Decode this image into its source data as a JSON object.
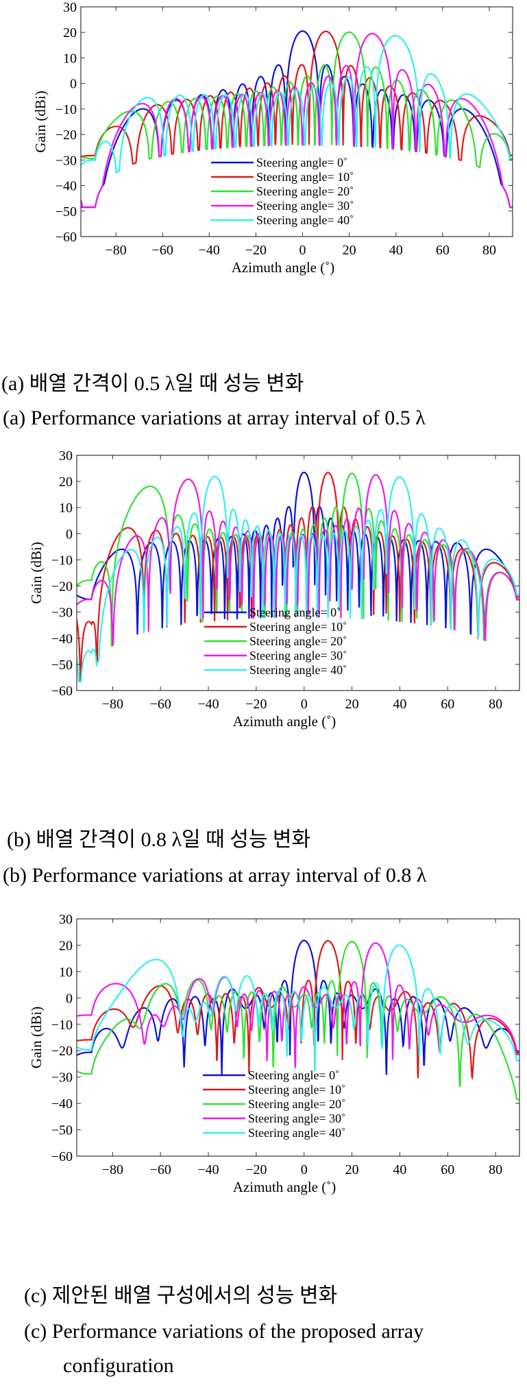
{
  "legend_labels": [
    "Steering angle= 0˚",
    "Steering angle= 10˚",
    "Steering angle= 20˚",
    "Steering angle= 30˚",
    "Steering angle= 40˚"
  ],
  "series_colors": [
    "#0a14d4",
    "#e01818",
    "#2fe22f",
    "#ee18ee",
    "#2ff0f0"
  ],
  "captions": {
    "a_ko": "(a) 배열 간격이 0.5 λ일 때 성능 변화",
    "a_en": "(a) Performance variations at array interval of 0.5 λ",
    "b_ko": "(b) 배열 간격이 0.8 λ일 때 성능 변화",
    "b_en": "(b) Performance variations at array interval of 0.8 λ",
    "c_ko": "(c) 제안된 배열 구성에서의 성능 변화",
    "c_en_1": "(c) Performance variations of the proposed array",
    "c_en_2": "configuration"
  },
  "chart_data": [
    {
      "type": "line",
      "xlabel": "Azimuth angle (˚)",
      "ylabel": "Gain (dBi)",
      "xlim": [
        -95,
        90
      ],
      "ylim": [
        -60,
        30
      ],
      "xticks": [
        -80,
        -60,
        -40,
        -20,
        0,
        20,
        40,
        60,
        80
      ],
      "yticks": [
        30,
        20,
        10,
        0,
        -10,
        -20,
        -30,
        -40,
        -50,
        -60
      ],
      "grid": false,
      "legend_position": "lower-center",
      "pattern": {
        "elements": 16,
        "spacing": 0.5,
        "peak_db": 20.5,
        "floor_db": -24,
        "steering": [
          0,
          10,
          20,
          30,
          40
        ],
        "variant": "uniform"
      },
      "series": [
        {
          "name": "Steering angle= 0˚",
          "steering": 0
        },
        {
          "name": "Steering angle= 10˚",
          "steering": 10
        },
        {
          "name": "Steering angle= 20˚",
          "steering": 20
        },
        {
          "name": "Steering angle= 30˚",
          "steering": 30
        },
        {
          "name": "Steering angle= 40˚",
          "steering": 40
        }
      ]
    },
    {
      "type": "line",
      "xlabel": "Azimuth angle (˚)",
      "ylabel": "Gain (dBi)",
      "xlim": [
        -95,
        90
      ],
      "ylim": [
        -60,
        30
      ],
      "xticks": [
        -80,
        -60,
        -40,
        -20,
        0,
        20,
        40,
        60,
        80
      ],
      "yticks": [
        30,
        20,
        10,
        0,
        -10,
        -20,
        -30,
        -40,
        -50,
        -60
      ],
      "grid": false,
      "legend_position": "lower-center",
      "pattern": {
        "elements": 16,
        "spacing": 0.8,
        "peak_db": 23.5,
        "floor_db": -32,
        "steering": [
          0,
          10,
          20,
          30,
          40
        ],
        "variant": "uniform"
      },
      "series": [
        {
          "name": "Steering angle= 0˚",
          "steering": 0
        },
        {
          "name": "Steering angle= 10˚",
          "steering": 10
        },
        {
          "name": "Steering angle= 20˚",
          "steering": 20
        },
        {
          "name": "Steering angle= 30˚",
          "steering": 30
        },
        {
          "name": "Steering angle= 40˚",
          "steering": 40
        }
      ]
    },
    {
      "type": "line",
      "xlabel": "Azimuth angle (˚)",
      "ylabel": "Gain (dBi)",
      "xlim": [
        -95,
        90
      ],
      "ylim": [
        -60,
        30
      ],
      "xticks": [
        -80,
        -60,
        -40,
        -20,
        0,
        20,
        40,
        60,
        80
      ],
      "yticks": [
        30,
        20,
        10,
        0,
        -10,
        -20,
        -30,
        -40,
        -50,
        -60
      ],
      "grid": false,
      "legend_position": "lower-center",
      "pattern": {
        "elements": 16,
        "spacing": 0.65,
        "peak_db": 21.8,
        "floor_db": -28,
        "steering": [
          0,
          10,
          20,
          30,
          40
        ],
        "variant": "proposed"
      },
      "series": [
        {
          "name": "Steering angle= 0˚",
          "steering": 0
        },
        {
          "name": "Steering angle= 10˚",
          "steering": 10
        },
        {
          "name": "Steering angle= 20˚",
          "steering": 20
        },
        {
          "name": "Steering angle= 30˚",
          "steering": 30
        },
        {
          "name": "Steering angle= 40˚",
          "steering": 40
        }
      ]
    }
  ]
}
